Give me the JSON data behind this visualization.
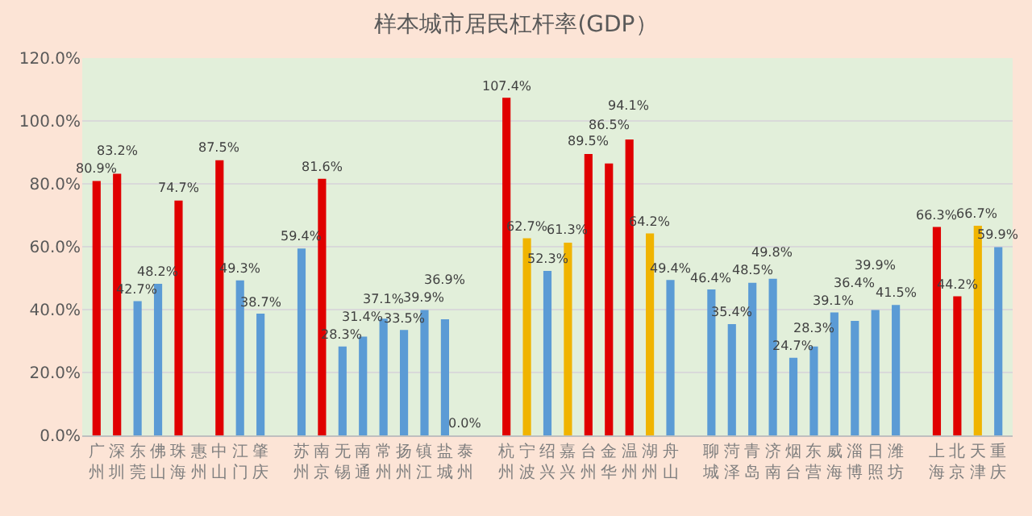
{
  "chart_data": {
    "type": "bar",
    "title": "样本城市居民杠杆率(GDP）",
    "categories": [
      "广州",
      "深圳",
      "东莞",
      "佛山",
      "珠海",
      "惠州",
      "中山",
      "江门",
      "肇庆",
      null,
      "苏州",
      "南京",
      "无锡",
      "南通",
      "常州",
      "扬州",
      "镇江",
      "盐城",
      "泰州",
      null,
      "杭州",
      "宁波",
      "绍兴",
      "嘉兴",
      "台州",
      "金华",
      "温州",
      "湖州",
      "舟山",
      null,
      "聊城",
      "菏泽",
      "青岛",
      "济南",
      "烟台",
      "东营",
      "威海",
      "淄博",
      "日照",
      "潍坊",
      null,
      "上海",
      "北京",
      "天津",
      "重庆"
    ],
    "values": [
      80.9,
      83.2,
      42.7,
      48.2,
      74.7,
      null,
      87.5,
      49.3,
      38.7,
      null,
      59.4,
      81.6,
      28.3,
      31.4,
      37.1,
      33.5,
      39.9,
      36.9,
      0.0,
      null,
      107.4,
      62.7,
      52.3,
      61.3,
      89.5,
      86.5,
      94.1,
      64.2,
      49.4,
      null,
      46.4,
      35.4,
      48.5,
      49.8,
      24.7,
      28.3,
      39.1,
      36.4,
      39.9,
      41.5,
      null,
      66.3,
      44.2,
      66.7,
      59.9
    ],
    "value_labels": [
      "80.9%",
      "83.2%",
      "42.7%",
      "48.2%",
      "74.7%",
      null,
      "87.5%",
      "49.3%",
      "38.7%",
      null,
      "59.4%",
      "81.6%",
      "28.3%",
      "31.4%",
      "37.1%",
      "33.5%",
      "39.9%",
      "36.9%",
      "0.0%",
      null,
      "107.4%",
      "62.7%",
      "52.3%",
      "61.3%",
      "89.5%",
      "86.5%",
      "94.1%",
      "64.2%",
      "49.4%",
      null,
      "46.4%",
      "35.4%",
      "48.5%",
      "49.8%",
      "24.7%",
      "28.3%",
      "39.1%",
      "36.4%",
      "39.9%",
      "41.5%",
      null,
      "66.3%",
      "44.2%",
      "66.7%",
      "59.9%"
    ],
    "colors": [
      "#e00000",
      "#e00000",
      "#5b9bd5",
      "#5b9bd5",
      "#e00000",
      "#5b9bd5",
      "#e00000",
      "#5b9bd5",
      "#5b9bd5",
      "#5b9bd5",
      "#5b9bd5",
      "#e00000",
      "#5b9bd5",
      "#5b9bd5",
      "#5b9bd5",
      "#5b9bd5",
      "#5b9bd5",
      "#5b9bd5",
      "#5b9bd5",
      "#5b9bd5",
      "#e00000",
      "#f0b400",
      "#5b9bd5",
      "#f0b400",
      "#e00000",
      "#e00000",
      "#e00000",
      "#f0b400",
      "#5b9bd5",
      "#5b9bd5",
      "#5b9bd5",
      "#5b9bd5",
      "#5b9bd5",
      "#5b9bd5",
      "#5b9bd5",
      "#5b9bd5",
      "#5b9bd5",
      "#5b9bd5",
      "#5b9bd5",
      "#5b9bd5",
      "#5b9bd5",
      "#e00000",
      "#e00000",
      "#f0b400",
      "#5b9bd5"
    ],
    "ylim": [
      0,
      120
    ],
    "yticks": [
      {
        "value": 0,
        "label": "0.0%"
      },
      {
        "value": 20,
        "label": "20.0%"
      },
      {
        "value": 40,
        "label": "40.0%"
      },
      {
        "value": 60,
        "label": "60.0%"
      },
      {
        "value": 80,
        "label": "80.0%"
      },
      {
        "value": 100,
        "label": "100.0%"
      },
      {
        "value": 120,
        "label": "120.0%"
      }
    ],
    "grid": "y"
  }
}
